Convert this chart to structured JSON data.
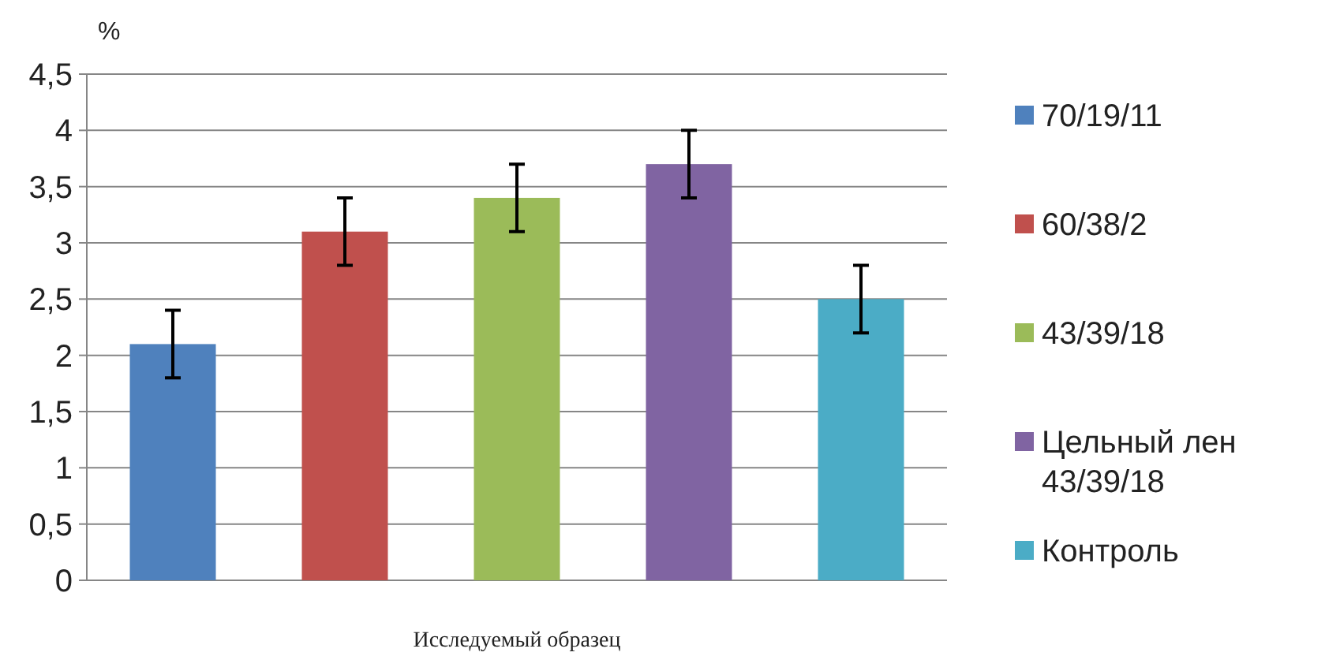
{
  "chart_data": {
    "type": "bar",
    "ylabel": "%",
    "xlabel": "Исследуемый образец",
    "categories": [
      null
    ],
    "series": [
      {
        "name": "70/19/11",
        "color": "#4f81bd",
        "values": [
          2.1
        ],
        "errors": [
          0.3
        ]
      },
      {
        "name": "60/38/2",
        "color": "#c0504d",
        "values": [
          3.1
        ],
        "errors": [
          0.3
        ]
      },
      {
        "name": "43/39/18",
        "color": "#9bbb59",
        "values": [
          3.4
        ],
        "errors": [
          0.3
        ]
      },
      {
        "name": "Цельный лен 43/39/18",
        "color": "#8064a2",
        "values": [
          3.7
        ],
        "errors": [
          0.3
        ]
      },
      {
        "name": "Контроль",
        "color": "#4bacc6",
        "values": [
          2.5
        ],
        "errors": [
          0.3
        ]
      }
    ],
    "ylim": [
      0,
      4.5
    ],
    "yticks": [
      0,
      {
        "value": 0.5,
        "label": "0,5"
      },
      1,
      {
        "value": 1.5,
        "label": "1,5"
      },
      2,
      {
        "value": 2.5,
        "label": "2,5"
      },
      3,
      {
        "value": 3.5,
        "label": "3,5"
      },
      4,
      {
        "value": 4.5,
        "label": "4,5"
      }
    ],
    "grid": "y",
    "legend": "right"
  }
}
